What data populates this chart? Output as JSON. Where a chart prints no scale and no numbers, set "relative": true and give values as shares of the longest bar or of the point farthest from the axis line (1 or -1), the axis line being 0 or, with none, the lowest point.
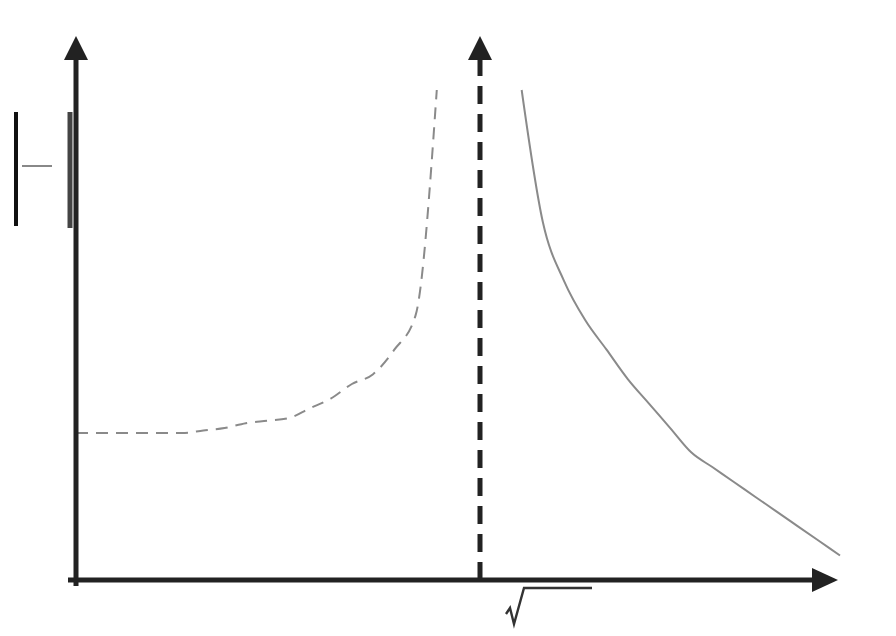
{
  "chart_data": {
    "type": "line",
    "relative": true,
    "categories": [
      null,
      null,
      null,
      null,
      null,
      null,
      null,
      null,
      null,
      null,
      null,
      null,
      null,
      null,
      null,
      null,
      null,
      null,
      null,
      null,
      null,
      null,
      null,
      null,
      null,
      null,
      null,
      null,
      null,
      null,
      null,
      null,
      null,
      null,
      null,
      null,
      null
    ],
    "series": [
      {
        "color": "#8a8a8a",
        "line_style": "dashed",
        "values": [
          0.3,
          0.3,
          0.3,
          0.3,
          0.3,
          0.3,
          0.305,
          0.31,
          0.32,
          0.325,
          0.33,
          0.35,
          0.37,
          0.4,
          0.42,
          0.47,
          0.54,
          1,
          null,
          null,
          null,
          null,
          null,
          null,
          null,
          null,
          null,
          null,
          null,
          null,
          null,
          null,
          null,
          null,
          null,
          null,
          null
        ]
      },
      {
        "color": "#8a8a8a",
        "line_style": "solid",
        "values": [
          null,
          null,
          null,
          null,
          null,
          null,
          null,
          null,
          null,
          null,
          null,
          null,
          null,
          null,
          null,
          null,
          null,
          null,
          null,
          null,
          null,
          1,
          0.73,
          0.61,
          0.53,
          0.47,
          0.41,
          0.36,
          0.31,
          0.26,
          0.23,
          0.2,
          0.17,
          0.14,
          0.11,
          0.08,
          0.05
        ]
      }
    ],
    "marker": "none",
    "grid": false
  }
}
